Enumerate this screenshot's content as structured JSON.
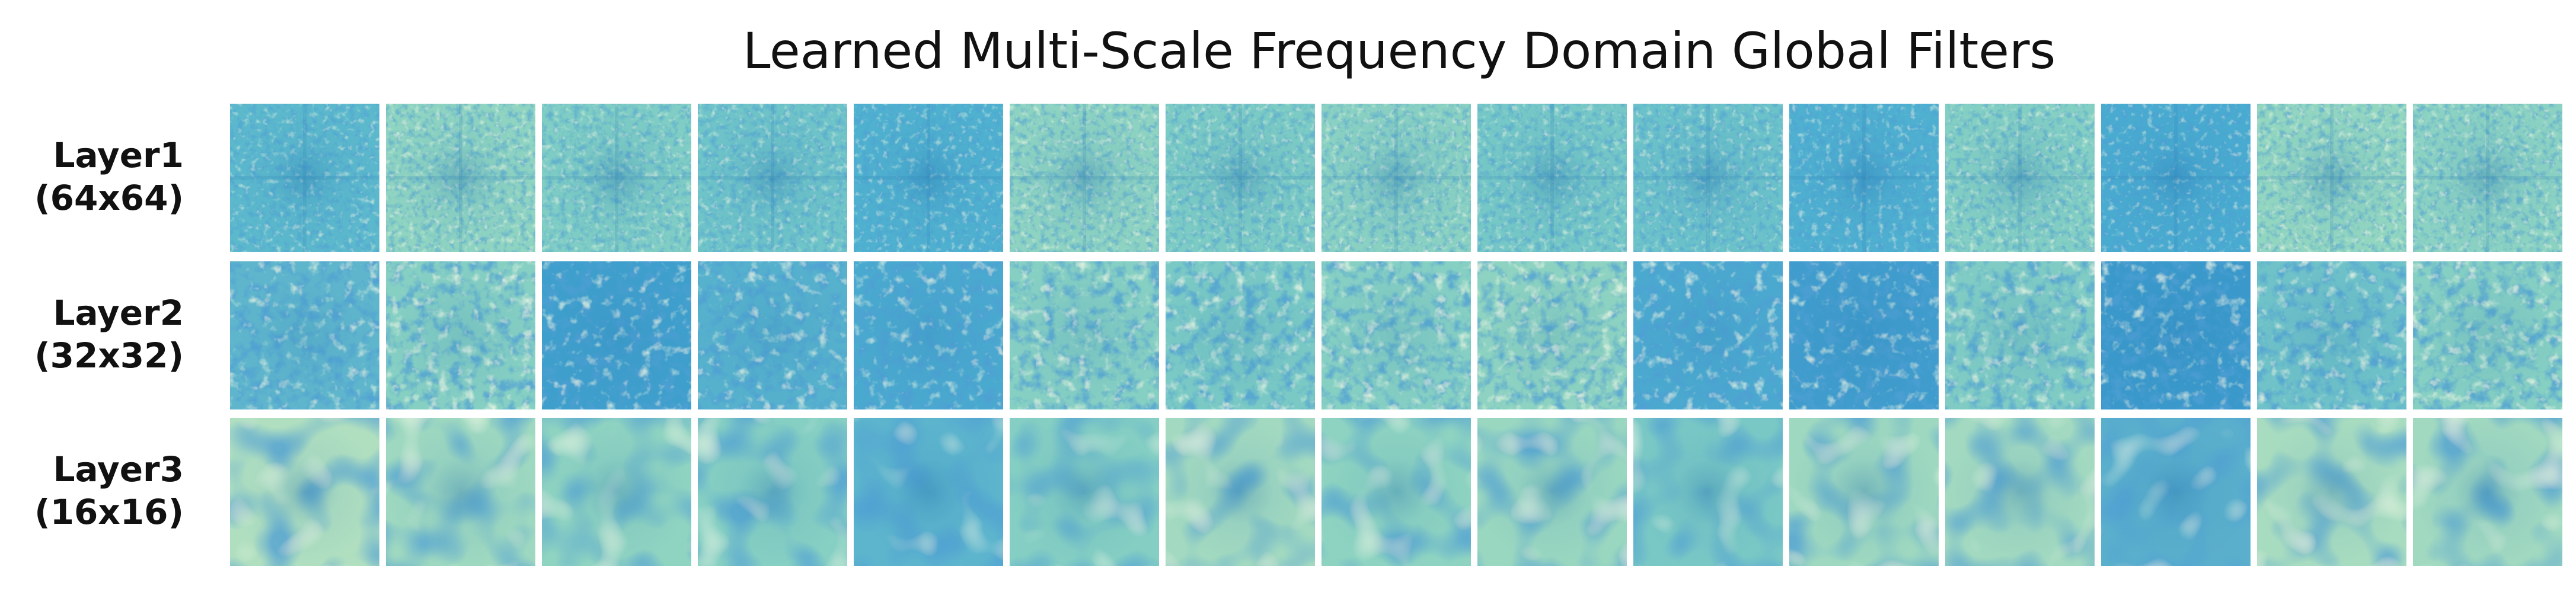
{
  "title": "Learned Multi-Scale Frequency Domain Global Filters",
  "rows": [
    {
      "name": "Layer1",
      "size": "(64x64)"
    },
    {
      "name": "Layer2",
      "size": "(32x32)"
    },
    {
      "name": "Layer3",
      "size": "(16x16)"
    }
  ]
}
